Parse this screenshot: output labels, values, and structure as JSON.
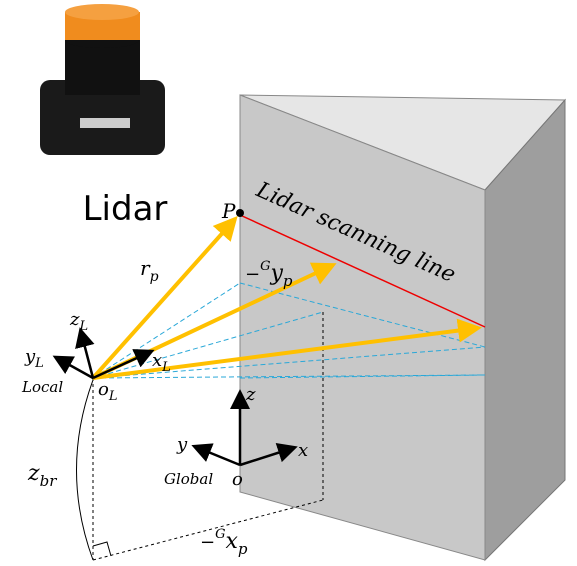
{
  "device_label": "Lidar",
  "point": "P",
  "scan_line_label": "Lidar scanning line",
  "range": {
    "base": "r",
    "sub": "p"
  },
  "global_y": {
    "sign": "−",
    "sup": "G",
    "base": "y",
    "sub": "p"
  },
  "global_x": {
    "sign": "−",
    "sup": "G",
    "base": "x",
    "sub": "p"
  },
  "height": {
    "base": "z",
    "sub": "br"
  },
  "local_frame": {
    "name": "Local",
    "origin": {
      "base": "o",
      "sub": "L"
    },
    "x": {
      "base": "x",
      "sub": "L"
    },
    "y": {
      "base": "y",
      "sub": "L"
    },
    "z": {
      "base": "z",
      "sub": "L"
    }
  },
  "global_frame": {
    "name": "Global",
    "origin": "o",
    "x": "x",
    "y": "y",
    "z": "z"
  }
}
